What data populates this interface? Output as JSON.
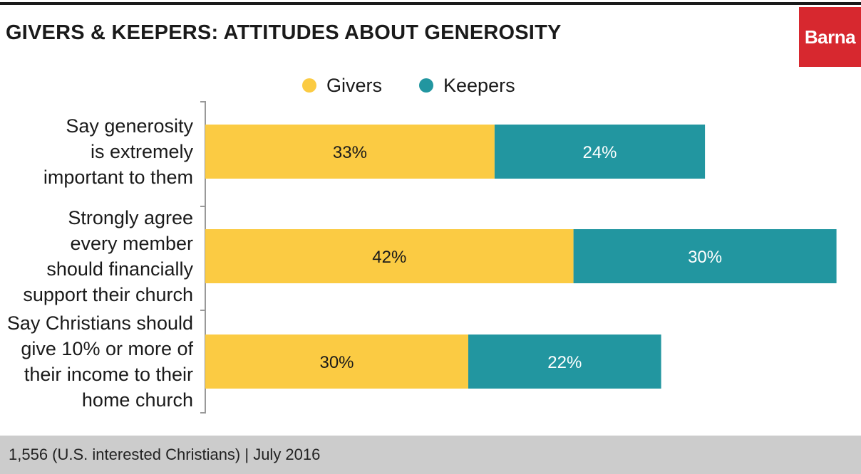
{
  "title": "GIVERS & KEEPERS: ATTITUDES ABOUT GENEROSITY",
  "logo": "Barna",
  "footer": "1,556 (U.S. interested Christians) | July 2016",
  "colors": {
    "givers": "#fbcb43",
    "keepers": "#2296a0",
    "logo_bg": "#d7282f",
    "footer_bg": "#cccccc"
  },
  "chart_data": {
    "type": "bar",
    "orientation": "horizontal",
    "stacked": true,
    "legend": {
      "placement": "top"
    },
    "grid": false,
    "categories": [
      [
        "Say generosity",
        "is extremely",
        "important to them"
      ],
      [
        "Strongly agree",
        "every member",
        "should financially",
        "support their church"
      ],
      [
        "Say Christians should",
        "give 10% or more of",
        "their income to their",
        "home church"
      ]
    ],
    "series": [
      {
        "name": "Givers",
        "values": [
          33,
          42,
          30
        ],
        "labels": [
          "33%",
          "42%",
          "30%"
        ]
      },
      {
        "name": "Keepers",
        "values": [
          24,
          30,
          22
        ],
        "labels": [
          "24%",
          "30%",
          "22%"
        ]
      }
    ]
  }
}
